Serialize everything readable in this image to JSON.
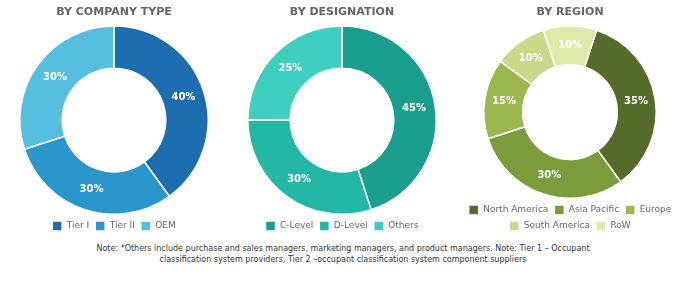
{
  "chart_data": [
    {
      "type": "doughnut",
      "title": "BY COMPANY TYPE",
      "categories": [
        "Tier I",
        "Tier II",
        "OEM"
      ],
      "values": [
        40,
        30,
        30
      ],
      "value_labels": [
        "40%",
        "30%",
        "30%"
      ],
      "colors": [
        "#1e6db0",
        "#2a96cc",
        "#56bfe0"
      ],
      "data_labels": true,
      "legend": "bottom"
    },
    {
      "type": "doughnut",
      "title": "BY DESIGNATION",
      "categories": [
        "C-Level",
        "D-Level",
        "Others"
      ],
      "values": [
        45,
        30,
        25
      ],
      "value_labels": [
        "45%",
        "30%",
        "25%"
      ],
      "colors": [
        "#1a9e8e",
        "#22b8a5",
        "#3ecfc0"
      ],
      "data_labels": true,
      "legend": "bottom"
    },
    {
      "type": "doughnut",
      "title": "BY REGION",
      "categories": [
        "North America",
        "Asia Pacific",
        "Europe",
        "South America",
        "RoW"
      ],
      "values": [
        35,
        30,
        15,
        10,
        10
      ],
      "value_labels": [
        "35%",
        "30%",
        "15%",
        "10%",
        "10%"
      ],
      "colors": [
        "#556b2a",
        "#7a9c3a",
        "#9ab84e",
        "#c8d98a",
        "#deeaa8"
      ],
      "data_labels": true,
      "legend": "bottom"
    }
  ],
  "annotations": [
    "Note: *Others include purchase and sales managers, marketing managers, and product managers. Note: Tier 1 – Occupant\nclassification system providers, Tier 2 –occupant classification system component suppliers"
  ]
}
